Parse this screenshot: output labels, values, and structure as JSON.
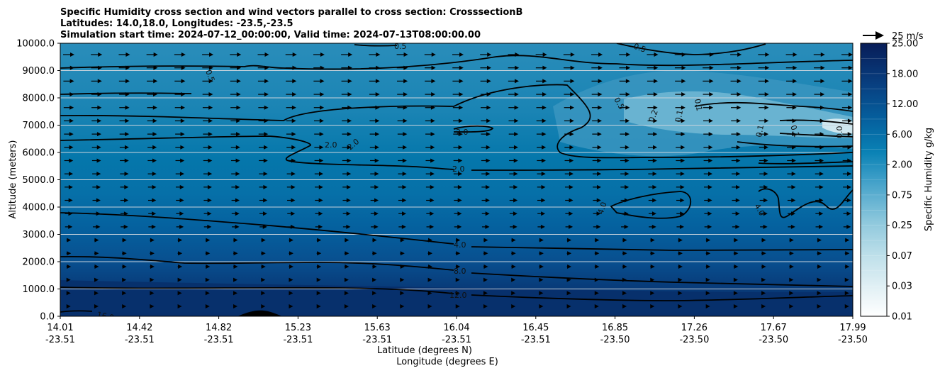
{
  "chart_data": {
    "type": "contour",
    "title_lines": [
      "Specific Humidity cross section and wind vectors parallel to cross section: CrosssectionB",
      "Latitudes: 14.0,18.0, Longitudes: -23.5,-23.5",
      "Simulation start time: 2024-07-12_00:00:00, Valid time: 2024-07-13T08:00:00.00"
    ],
    "ylabel": "Altitude (meters)",
    "xlabel_lines": [
      "Latitude (degrees N)",
      "Longitude (degrees E)"
    ],
    "ylim": [
      0,
      10000
    ],
    "y_ticks": [
      "0.0",
      "1000.0",
      "2000.0",
      "3000.0",
      "4000.0",
      "5000.0",
      "6000.0",
      "7000.0",
      "8000.0",
      "9000.0",
      "10000.0"
    ],
    "y_tick_values": [
      0,
      1000,
      2000,
      3000,
      4000,
      5000,
      6000,
      7000,
      8000,
      9000,
      10000
    ],
    "x_ticks_lat": [
      "14.01",
      "14.42",
      "14.82",
      "15.23",
      "15.63",
      "16.04",
      "16.45",
      "16.85",
      "17.26",
      "17.67",
      "17.99"
    ],
    "x_ticks_lon": [
      "-23.51",
      "-23.51",
      "-23.51",
      "-23.51",
      "-23.51",
      "-23.51",
      "-23.51",
      "-23.50",
      "-23.50",
      "-23.50",
      "-23.50"
    ],
    "colorbar": {
      "label": "Specific Humidity g/kg",
      "ticks": [
        "0.01",
        "0.03",
        "0.07",
        "0.25",
        "0.75",
        "2.00",
        "6.00",
        "12.00",
        "18.00",
        "25.00"
      ],
      "levels": 18
    },
    "quiver_key": "25 m/s",
    "contour_labels": [
      "16.0",
      "12.0",
      "8.0",
      "4.0",
      "2.0",
      "2.0",
      "2.0",
      "2.0",
      "4.0",
      "4.0",
      "0.5",
      "0.5",
      "0.5",
      "0.2",
      "0.1",
      "0.1",
      "0.1",
      "0.1",
      "0.0",
      "0.5"
    ],
    "colors": {
      "bottom": "#08306b",
      "mid": "#0575a6",
      "top": "#2f8fb8",
      "dry": "#6fb9d3"
    }
  }
}
